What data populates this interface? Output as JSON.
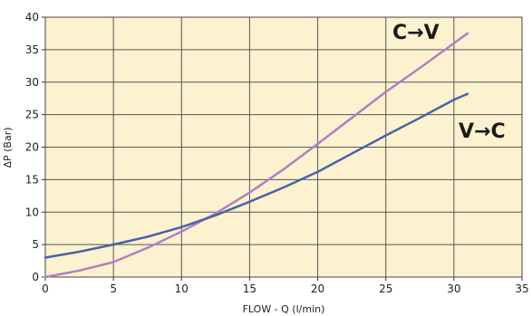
{
  "chart_data": {
    "type": "line",
    "xlabel": "FLOW - Q (l/min)",
    "ylabel": "ΔP (Bar)",
    "xlim": [
      0,
      35
    ],
    "ylim": [
      0,
      40
    ],
    "xticks": [
      "0",
      "5",
      "10",
      "15",
      "20",
      "25",
      "30",
      "35"
    ],
    "yticks": [
      "0",
      "5",
      "10",
      "15",
      "20",
      "25",
      "30",
      "35",
      "40"
    ],
    "grid": true,
    "background_color": "#fdf2cf",
    "grid_color": "#555555",
    "series": [
      {
        "name": "C→V",
        "color": "#b07fc2",
        "x": [
          0,
          2.5,
          5,
          7.5,
          10,
          12.5,
          15,
          17.5,
          20,
          22.5,
          25,
          27.5,
          30,
          31
        ],
        "y": [
          0,
          1,
          2.3,
          4.5,
          7,
          9.8,
          13,
          16.6,
          20.5,
          24.5,
          28.5,
          32.2,
          36,
          37.5
        ]
      },
      {
        "name": "V→C",
        "color": "#4a62a8",
        "x": [
          0,
          2.5,
          5,
          7.5,
          10,
          12.5,
          15,
          17.5,
          20,
          22.5,
          25,
          27.5,
          30,
          31
        ],
        "y": [
          3,
          3.9,
          5,
          6.2,
          7.7,
          9.5,
          11.6,
          13.8,
          16.2,
          19,
          21.8,
          24.5,
          27.3,
          28.2
        ]
      }
    ]
  }
}
